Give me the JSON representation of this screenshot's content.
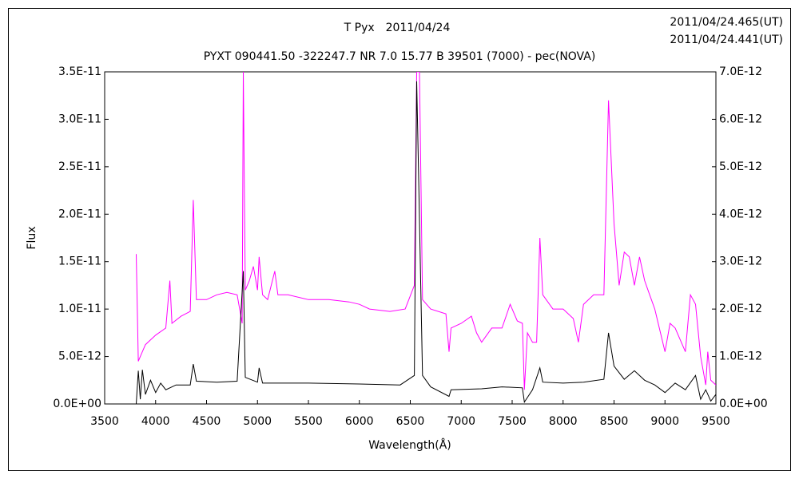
{
  "chart_data": {
    "type": "line",
    "title": "T Pyx　2011/04/24",
    "subtitle": "PYXT 090441.50 -322247.7 NR 7.0 15.77 B 39501 (7000) - pec(NOVA)",
    "x_label": "Wavelength(Å)",
    "y_label": "Flux",
    "xlim": [
      3500,
      9500
    ],
    "xticks": [
      3500,
      4000,
      4500,
      5000,
      5500,
      6000,
      6500,
      7000,
      7500,
      8000,
      8500,
      9000,
      9500
    ],
    "ylim": [
      0,
      3.5e-11
    ],
    "yticks": [
      {
        "value": 0,
        "label": "0.0E+00"
      },
      {
        "value": 5e-12,
        "label": "5.0E-12"
      },
      {
        "value": 1e-11,
        "label": "1.0E-11"
      },
      {
        "value": 1.5e-11,
        "label": "1.5E-11"
      },
      {
        "value": 2e-11,
        "label": "2.0E-11"
      },
      {
        "value": 2.5e-11,
        "label": "2.5E-11"
      },
      {
        "value": 3e-11,
        "label": "3.0E-11"
      },
      {
        "value": 3.5e-11,
        "label": "3.5E-11"
      }
    ],
    "y2lim": [
      0,
      7e-12
    ],
    "y2ticks": [
      {
        "value": 0,
        "label": "0.0E+00"
      },
      {
        "value": 1e-12,
        "label": "1.0E-12"
      },
      {
        "value": 2e-12,
        "label": "2.0E-12"
      },
      {
        "value": 3e-12,
        "label": "3.0E-12"
      },
      {
        "value": 4e-12,
        "label": "4.0E-12"
      },
      {
        "value": 5e-12,
        "label": "5.0E-12"
      },
      {
        "value": 6e-12,
        "label": "6.0E-12"
      },
      {
        "value": 7e-12,
        "label": "7.0E-12"
      }
    ],
    "legend": "top-right",
    "series": [
      {
        "name": "2011/04/24.465(UT)",
        "color": "#ff00ff",
        "axis": "y2",
        "x": [
          3810,
          3830,
          3850,
          3900,
          4000,
          4100,
          4140,
          4160,
          4250,
          4340,
          4370,
          4400,
          4500,
          4600,
          4700,
          4800,
          4850,
          4861,
          4880,
          4920,
          4960,
          5000,
          5016,
          5050,
          5100,
          5170,
          5200,
          5300,
          5500,
          5700,
          5900,
          6000,
          6100,
          6300,
          6450,
          6540,
          6563,
          6590,
          6620,
          6700,
          6850,
          6880,
          6900,
          7000,
          7100,
          7150,
          7200,
          7300,
          7400,
          7480,
          7550,
          7600,
          7620,
          7650,
          7700,
          7740,
          7772,
          7800,
          7900,
          8000,
          8100,
          8150,
          8200,
          8300,
          8400,
          8446,
          8500,
          8550,
          8600,
          8650,
          8700,
          8750,
          8800,
          8850,
          8900,
          9000,
          9050,
          9100,
          9200,
          9250,
          9300,
          9350,
          9400,
          9420,
          9450,
          9500
        ],
        "values": [
          3.16e-12,
          9e-13,
          1e-12,
          1.25e-12,
          1.45e-12,
          1.6e-12,
          2.6e-12,
          1.7e-12,
          1.85e-12,
          1.95e-12,
          4.3e-12,
          2.2e-12,
          2.2e-12,
          2.3e-12,
          2.35e-12,
          2.3e-12,
          1.7e-12,
          7e-12,
          2.4e-12,
          2.6e-12,
          2.9e-12,
          2.4e-12,
          3.1e-12,
          2.3e-12,
          2.2e-12,
          2.8e-12,
          2.3e-12,
          2.3e-12,
          2.2e-12,
          2.2e-12,
          2.15e-12,
          2.1e-12,
          2e-12,
          1.95e-12,
          2e-12,
          2.5e-12,
          7e-12,
          7e-12,
          2.2e-12,
          2e-12,
          1.9e-12,
          1.1e-12,
          1.6e-12,
          1.7e-12,
          1.85e-12,
          1.5e-12,
          1.3e-12,
          1.6e-12,
          1.6e-12,
          2.1e-12,
          1.75e-12,
          1.7e-12,
          3e-13,
          1.5e-12,
          1.3e-12,
          1.3e-12,
          3.5e-12,
          2.3e-12,
          2e-12,
          2e-12,
          1.8e-12,
          1.3e-12,
          2.1e-12,
          2.3e-12,
          2.3e-12,
          6.4e-12,
          3.8e-12,
          2.5e-12,
          3.2e-12,
          3.1e-12,
          2.5e-12,
          3.1e-12,
          2.6e-12,
          2.3e-12,
          2e-12,
          1.1e-12,
          1.7e-12,
          1.6e-12,
          1.1e-12,
          2.3e-12,
          2.1e-12,
          1e-12,
          4e-13,
          1.1e-12,
          5e-13,
          4e-13
        ]
      },
      {
        "name": "2011/04/24.441(UT)",
        "color": "#000000",
        "axis": "y",
        "x": [
          3810,
          3830,
          3850,
          3870,
          3900,
          3950,
          4000,
          4050,
          4100,
          4200,
          4340,
          4370,
          4400,
          4600,
          4800,
          4861,
          4880,
          5000,
          5016,
          5050,
          5500,
          6000,
          6400,
          6540,
          6563,
          6580,
          6620,
          6700,
          6880,
          6900,
          7200,
          7400,
          7600,
          7620,
          7700,
          7772,
          7800,
          8000,
          8200,
          8400,
          8446,
          8500,
          8600,
          8700,
          8800,
          8900,
          9000,
          9100,
          9200,
          9300,
          9350,
          9400,
          9450,
          9500
        ],
        "values": [
          0,
          3.5e-12,
          5e-13,
          3.6e-12,
          1e-12,
          2.5e-12,
          1.2e-12,
          2.2e-12,
          1.5e-12,
          2e-12,
          2e-12,
          4.2e-12,
          2.4e-12,
          2.3e-12,
          2.4e-12,
          1.4e-11,
          2.8e-12,
          2.3e-12,
          3.8e-12,
          2.2e-12,
          2.2e-12,
          2.1e-12,
          2e-12,
          3e-12,
          3.4e-11,
          2.5e-11,
          3e-12,
          1.8e-12,
          8e-13,
          1.5e-12,
          1.6e-12,
          1.8e-12,
          1.7e-12,
          2e-13,
          1.5e-12,
          3.8e-12,
          2.3e-12,
          2.2e-12,
          2.3e-12,
          2.6e-12,
          7.5e-12,
          4e-12,
          2.6e-12,
          3.5e-12,
          2.5e-12,
          2e-12,
          1.2e-12,
          2.2e-12,
          1.5e-12,
          3e-12,
          5e-13,
          1.5e-12,
          3e-13,
          1e-12
        ]
      }
    ]
  }
}
